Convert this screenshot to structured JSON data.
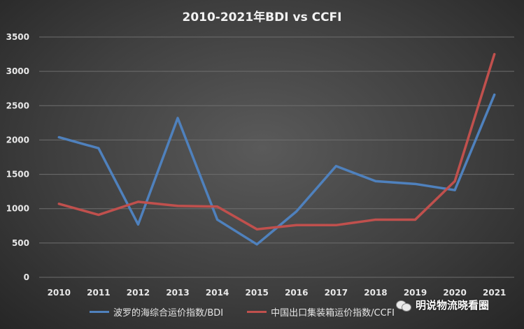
{
  "chart_data": {
    "type": "line",
    "title": "2010-2021年BDI vs CCFI",
    "categories": [
      "2010",
      "2011",
      "2012",
      "2013",
      "2014",
      "2015",
      "2016",
      "2017",
      "2018",
      "2019",
      "2020",
      "2021"
    ],
    "yticks": [
      0,
      500,
      1000,
      1500,
      2000,
      2500,
      3000,
      3500
    ],
    "ylim": [
      0,
      3500
    ],
    "grid": true,
    "legend_position": "bottom",
    "series": [
      {
        "name": "波罗的海综合运价指数/BDI",
        "color": "#4f81bd",
        "values": [
          2040,
          1880,
          770,
          2320,
          840,
          480,
          960,
          1620,
          1400,
          1360,
          1270,
          2660
        ]
      },
      {
        "name": "中国出口集装箱运价指数/CCFI",
        "color": "#c0504d",
        "values": [
          1070,
          910,
          1100,
          1040,
          1030,
          700,
          760,
          760,
          840,
          840,
          1400,
          3250
        ]
      }
    ]
  },
  "watermark": "明说物流晓看圈"
}
